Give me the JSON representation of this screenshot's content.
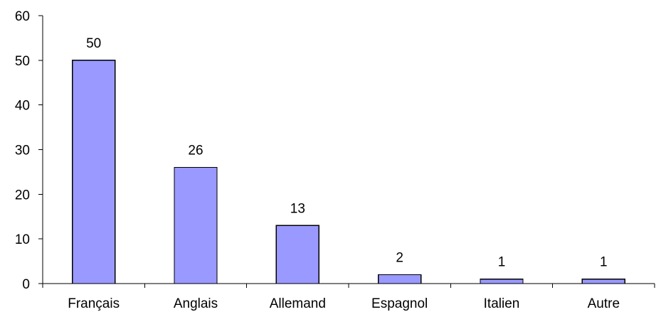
{
  "chart_data": {
    "type": "bar",
    "title": "",
    "xlabel": "",
    "ylabel": "",
    "categories": [
      "Français",
      "Anglais",
      "Allemand",
      "Espagnol",
      "Italien",
      "Autre"
    ],
    "values": [
      50,
      26,
      13,
      2,
      1,
      1
    ],
    "data_labels": [
      "50",
      "26",
      "13",
      "2",
      "1",
      "1"
    ],
    "ylim": [
      0,
      60
    ],
    "yticks": [
      0,
      10,
      20,
      30,
      40,
      50,
      60
    ],
    "ytick_labels": [
      "0",
      "10",
      "20",
      "30",
      "40",
      "50",
      "60"
    ],
    "grid": false,
    "legend": "none",
    "bar_color": "#9999ff"
  }
}
